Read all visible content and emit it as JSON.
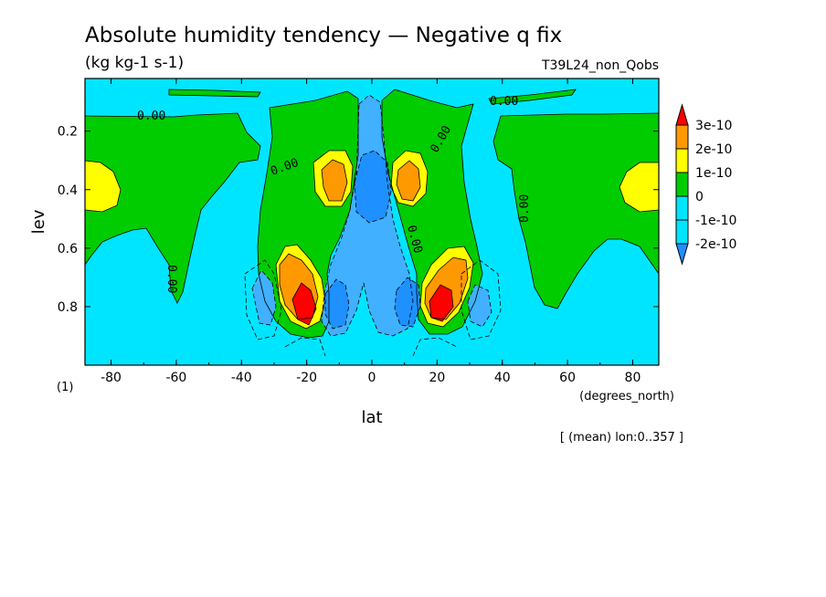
{
  "title": "Absolute humidity tendency — Negative q fix",
  "units": "(kg kg-1 s-1)",
  "run_label": "T39L24_non_Qobs",
  "axis_xunits": "(degrees_north)",
  "axis_ylabel_extra": "(1)",
  "footer": "[ (mean) lon:0..357 ]",
  "colors": {
    "c_m2": "#1e90ff",
    "c_m1": "#00e5ff",
    "c_m1b": "#40b0ff",
    "c_0": "#00cc00",
    "c_1": "#ffff00",
    "c_2": "#ff9900",
    "c_3": "#ff0000"
  },
  "chart_data": {
    "type": "heatmap",
    "subtype": "filled-contour",
    "xlabel": "lat",
    "ylabel": "lev",
    "xlim": [
      -88,
      88
    ],
    "ylim": [
      1.0,
      0.02
    ],
    "xticks": [
      -80,
      -60,
      -40,
      -20,
      0,
      20,
      40,
      60,
      80
    ],
    "yticks": [
      0.2,
      0.4,
      0.6,
      0.8
    ],
    "xtick_labels": [
      "-80",
      "-60",
      "-40",
      "-20",
      "0",
      "20",
      "40",
      "60",
      "80"
    ],
    "ytick_labels": [
      "0.2",
      "0.4",
      "0.6",
      "0.8"
    ],
    "contour_labels": [
      "0.00",
      "0.00",
      "0.00",
      "0.00",
      "0.00",
      "0.00",
      "0.00"
    ],
    "levels": [
      {
        "label": "3e-10",
        "color": "#ff0000"
      },
      {
        "label": "2e-10",
        "color": "#ff9900"
      },
      {
        "label": "1e-10",
        "color": "#ffff00"
      },
      {
        "label": "0",
        "color": "#00cc00"
      },
      {
        "label": "-1e-10",
        "color": "#00e5ff"
      },
      {
        "label": "-2e-10",
        "color": "#1e90ff"
      }
    ],
    "legend_position": "right"
  }
}
